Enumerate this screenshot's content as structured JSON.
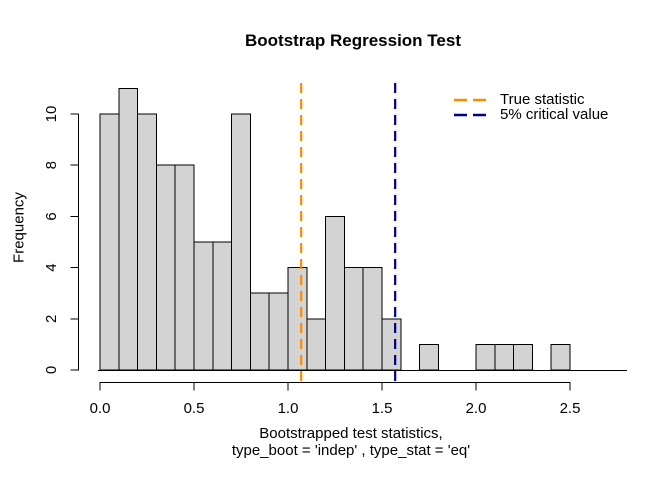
{
  "window": {
    "background_color": "#ffffff"
  },
  "chart_data": {
    "type": "bar",
    "subtype": "histogram",
    "title": "Bootstrap Regression Test",
    "xlabel_line1": "Bootstrapped test statistics,",
    "xlabel_line2": "type_boot = 'indep' , type_stat = 'eq'",
    "ylabel": "Frequency",
    "bin_start": 0.0,
    "bin_width": 0.1,
    "counts": [
      10,
      11,
      10,
      8,
      8,
      5,
      5,
      10,
      3,
      3,
      4,
      2,
      6,
      4,
      4,
      2,
      0,
      1,
      0,
      0,
      1,
      1,
      1,
      0,
      1
    ],
    "x_ticks": [
      0.0,
      0.5,
      1.0,
      1.5,
      2.0,
      2.5
    ],
    "x_tick_labels": [
      "0.0",
      "0.5",
      "1.0",
      "1.5",
      "2.0",
      "2.5"
    ],
    "y_ticks": [
      0,
      2,
      4,
      6,
      8,
      10
    ],
    "y_tick_labels": [
      "0",
      "2",
      "4",
      "6",
      "8",
      "10"
    ],
    "xlim": [
      -0.1,
      2.8
    ],
    "ylim": [
      0,
      11.5
    ],
    "grid": false,
    "bar_fill": "#d3d3d3",
    "bar_border": "#000000",
    "axis_color": "#000000",
    "vlines": [
      {
        "name": "true-statistic",
        "value": 1.07,
        "color": "#ff8c00",
        "style": "dashed",
        "label": "True statistic"
      },
      {
        "name": "critical-value",
        "value": 1.57,
        "color": "#00008b",
        "style": "dashed",
        "label": "5% critical value"
      }
    ],
    "legend": {
      "position": "topright",
      "entries": [
        {
          "label": "True statistic",
          "color": "#ff8c00",
          "line_style": "dashed"
        },
        {
          "label": "5% critical value",
          "color": "#00008b",
          "line_style": "dashed"
        }
      ]
    }
  }
}
